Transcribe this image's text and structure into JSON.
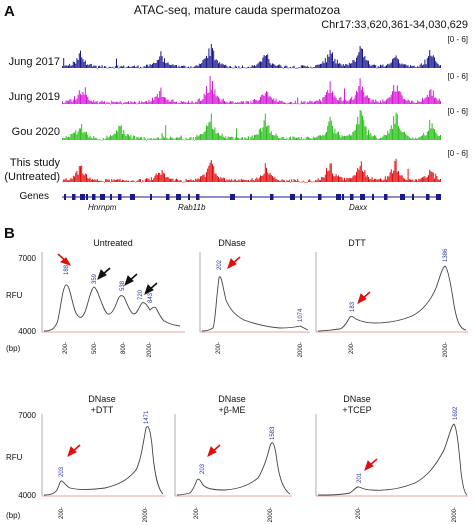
{
  "figure": {
    "panel_a": {
      "label": "A",
      "title": "ATAC-seq, mature cauda spermatozoa",
      "locus": "Chr17:33,620,361-34,030,629",
      "genes_label": "Genes",
      "tracks": [
        {
          "name": "Jung 2017",
          "range": "[0 - 6]",
          "color": "#1a1a8c"
        },
        {
          "name": "Jung 2019",
          "range": "[0 - 6]",
          "color": "#d61ad6"
        },
        {
          "name": "Gou 2020",
          "range": "[0 - 6]",
          "color": "#2fbf1f"
        },
        {
          "name": "This study",
          "name2": "(Untreated)",
          "range": "[0 - 6]",
          "color": "#e01010"
        }
      ],
      "genes": [
        "Hnrnpm",
        "Rab11b",
        "Daxx"
      ]
    },
    "panel_b": {
      "label": "B",
      "y_axis_label": "RFU",
      "x_axis_label": "(bp)",
      "y_ticks": [
        "7000",
        "4000"
      ],
      "plots": [
        {
          "title": "Untreated",
          "x_ticks": [
            "200-",
            "500-",
            "800-",
            "2000-"
          ],
          "peak_labels": [
            "188",
            "359",
            "538",
            "720",
            "843"
          ]
        },
        {
          "title": "DNase",
          "x_ticks": [
            "200-",
            "2000-"
          ],
          "peak_labels": [
            "202",
            "1074"
          ]
        },
        {
          "title": "DTT",
          "x_ticks": [
            "200-",
            "2000-"
          ],
          "peak_labels": [
            "183",
            "1386"
          ]
        },
        {
          "title": "DNase",
          "title2": "+DTT",
          "x_ticks": [
            "200-",
            "2000-"
          ],
          "peak_labels": [
            "203",
            "1471"
          ]
        },
        {
          "title": "DNase",
          "title2": "+β-ME",
          "x_ticks": [
            "200-",
            "2000-"
          ],
          "peak_labels": [
            "203",
            "1583"
          ]
        },
        {
          "title": "DNase",
          "title2": "+TCEP",
          "x_ticks": [
            "200-",
            "2000-"
          ],
          "peak_labels": [
            "201",
            "1692"
          ]
        }
      ]
    }
  }
}
